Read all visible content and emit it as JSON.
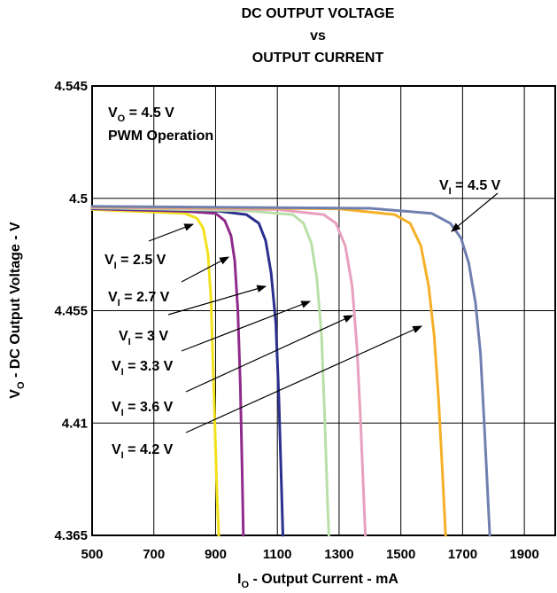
{
  "chart_data": {
    "type": "line",
    "title": [
      "DC OUTPUT VOLTAGE",
      "vs",
      "OUTPUT CURRENT"
    ],
    "xlabel": {
      "main": "I",
      "sub": "O",
      "rest": " - Output Current - mA"
    },
    "ylabel": {
      "main": "V",
      "sub": "O",
      "rest": " - DC Output Voltage - V"
    },
    "xlim": [
      500,
      2000
    ],
    "ylim": [
      4.365,
      4.545
    ],
    "x_ticks": [
      500,
      700,
      900,
      1100,
      1300,
      1500,
      1700,
      1900
    ],
    "x_tick_labels": [
      "500",
      "700",
      "900",
      "1100",
      "1300",
      "1500",
      "1700",
      "1900"
    ],
    "y_ticks": [
      4.365,
      4.41,
      4.455,
      4.5,
      4.545
    ],
    "y_tick_labels": [
      "4.365",
      "4.41",
      "4.455",
      "4.5",
      "4.545"
    ],
    "grid": true,
    "conditions": [
      {
        "main": "V",
        "sub": "O",
        "rest": " = 4.5 V"
      },
      {
        "main": "PWM Operation",
        "sub": "",
        "rest": ""
      }
    ],
    "series": [
      {
        "label": {
          "main": "V",
          "sub": "I",
          "rest": " = 2.5 V"
        },
        "color": "#f2e21c",
        "points": [
          [
            500,
            4.4955
          ],
          [
            700,
            4.4945
          ],
          [
            800,
            4.494
          ],
          [
            840,
            4.492
          ],
          [
            860,
            4.488
          ],
          [
            875,
            4.478
          ],
          [
            885,
            4.46
          ],
          [
            895,
            4.42
          ],
          [
            905,
            4.38
          ],
          [
            910,
            4.365
          ]
        ]
      },
      {
        "label": {
          "main": "V",
          "sub": "I",
          "rest": " = 2.7 V"
        },
        "color": "#8f2a8a",
        "points": [
          [
            500,
            4.4958
          ],
          [
            800,
            4.4948
          ],
          [
            900,
            4.494
          ],
          [
            930,
            4.491
          ],
          [
            950,
            4.485
          ],
          [
            962,
            4.475
          ],
          [
            972,
            4.455
          ],
          [
            980,
            4.425
          ],
          [
            986,
            4.39
          ],
          [
            990,
            4.365
          ]
        ]
      },
      {
        "label": {
          "main": "V",
          "sub": "I",
          "rest": " = 3 V"
        },
        "color": "#2b2f8e",
        "points": [
          [
            500,
            4.496
          ],
          [
            900,
            4.495
          ],
          [
            1000,
            4.4935
          ],
          [
            1040,
            4.49
          ],
          [
            1062,
            4.483
          ],
          [
            1080,
            4.47
          ],
          [
            1095,
            4.45
          ],
          [
            1105,
            4.42
          ],
          [
            1112,
            4.39
          ],
          [
            1118,
            4.365
          ]
        ]
      },
      {
        "label": {
          "main": "V",
          "sub": "I",
          "rest": " = 3.3 V"
        },
        "color": "#b9dfa8",
        "points": [
          [
            500,
            4.4962
          ],
          [
            1000,
            4.495
          ],
          [
            1150,
            4.4935
          ],
          [
            1185,
            4.49
          ],
          [
            1210,
            4.482
          ],
          [
            1228,
            4.468
          ],
          [
            1243,
            4.445
          ],
          [
            1254,
            4.41
          ],
          [
            1262,
            4.38
          ],
          [
            1267,
            4.365
          ]
        ]
      },
      {
        "label": {
          "main": "V",
          "sub": "I",
          "rest": " = 3.6 V"
        },
        "color": "#e8a0bf",
        "points": [
          [
            500,
            4.4964
          ],
          [
            1100,
            4.4955
          ],
          [
            1250,
            4.4935
          ],
          [
            1290,
            4.49
          ],
          [
            1320,
            4.481
          ],
          [
            1342,
            4.465
          ],
          [
            1358,
            4.44
          ],
          [
            1370,
            4.41
          ],
          [
            1380,
            4.38
          ],
          [
            1385,
            4.365
          ]
        ]
      },
      {
        "label": {
          "main": "V",
          "sub": "I",
          "rest": " = 4.2 V"
        },
        "color": "#f5b027",
        "points": [
          [
            500,
            4.4966
          ],
          [
            1300,
            4.4958
          ],
          [
            1480,
            4.4935
          ],
          [
            1530,
            4.49
          ],
          [
            1565,
            4.481
          ],
          [
            1590,
            4.465
          ],
          [
            1608,
            4.445
          ],
          [
            1622,
            4.42
          ],
          [
            1635,
            4.39
          ],
          [
            1645,
            4.365
          ]
        ]
      },
      {
        "label": {
          "main": "V",
          "sub": "I",
          "rest": " = 4.5 V"
        },
        "color": "#6f7fb0",
        "points": [
          [
            500,
            4.4968
          ],
          [
            1400,
            4.496
          ],
          [
            1600,
            4.494
          ],
          [
            1660,
            4.49
          ],
          [
            1695,
            4.484
          ],
          [
            1720,
            4.474
          ],
          [
            1742,
            4.458
          ],
          [
            1758,
            4.438
          ],
          [
            1770,
            4.41
          ],
          [
            1780,
            4.385
          ],
          [
            1788,
            4.365
          ]
        ]
      }
    ]
  }
}
